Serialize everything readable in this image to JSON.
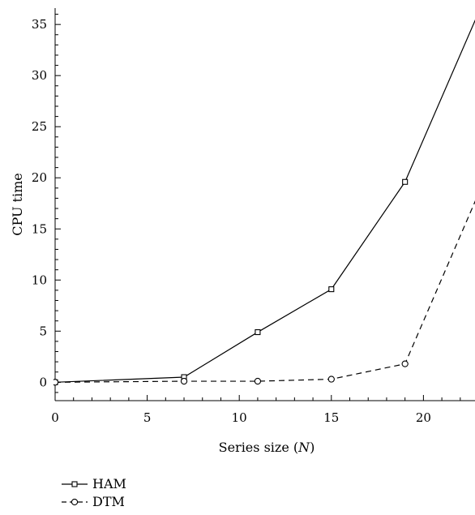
{
  "chart_data": {
    "type": "line",
    "title": "",
    "xlabel": "Series size",
    "xlabel_var": "N",
    "ylabel": "CPU time",
    "xlim": [
      0,
      22.8
    ],
    "ylim": [
      -1.8,
      36.6
    ],
    "xticks": [
      0,
      5,
      10,
      15,
      20
    ],
    "yticks": [
      0,
      5,
      10,
      15,
      20,
      25,
      30,
      35
    ],
    "grid": false,
    "legend_position": "bottom-left",
    "series": [
      {
        "name": "HAM",
        "marker": "square",
        "line_style": "solid",
        "color": "#000000",
        "x": [
          0,
          7,
          11,
          15,
          19,
          23
        ],
        "y": [
          0,
          0.5,
          4.9,
          9.1,
          19.6,
          36.2
        ]
      },
      {
        "name": "DTM",
        "marker": "circle",
        "line_style": "dashed",
        "color": "#000000",
        "x": [
          0,
          7,
          11,
          15,
          19,
          23
        ],
        "y": [
          0,
          0.1,
          0.1,
          0.3,
          1.8,
          18.5
        ]
      }
    ]
  }
}
